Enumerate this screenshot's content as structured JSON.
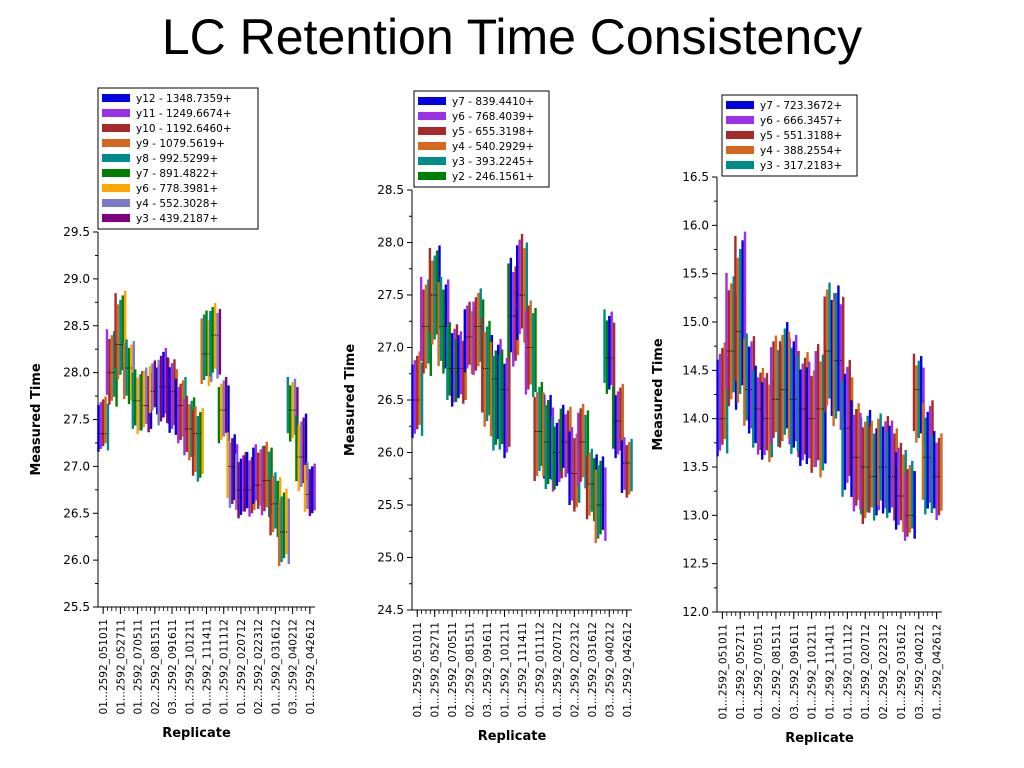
{
  "title": "LC Retention Time Consistency",
  "chart_data": [
    {
      "type": "box",
      "xlabel": "Replicate",
      "ylabel": "Measured Time",
      "ylim": [
        25.5,
        29.5
      ],
      "yticks": [
        25.5,
        26.0,
        26.5,
        27.0,
        27.5,
        28.0,
        28.5,
        29.0,
        29.5
      ],
      "tick_labels": [
        "01...2592_051011",
        "01...2592_052711",
        "01...2592_070511",
        "02...2592_081511",
        "03...2592_091611",
        "01...2592_101211",
        "01...2592_111411",
        "01...2592_011112",
        "01...2592_020712",
        "02...2592_022312",
        "01...2592_031612",
        "03...2592_040212",
        "01...2592_042612"
      ],
      "legend": [
        {
          "label": "y12 - 1348.7359+",
          "color": "#0000e0"
        },
        {
          "label": "y11 - 1249.6674+",
          "color": "#9b30e6"
        },
        {
          "label": "y10 - 1192.6460+",
          "color": "#a52a2a"
        },
        {
          "label": "y9 - 1079.5619+",
          "color": "#d2691e"
        },
        {
          "label": "y8 - 992.5299+",
          "color": "#008b8b"
        },
        {
          "label": "y7 - 891.4822+",
          "color": "#008000"
        },
        {
          "label": "y6 - 778.3981+",
          "color": "#ffa500"
        },
        {
          "label": "y4 - 552.3028+",
          "color": "#7b7bc8"
        },
        {
          "label": "y3 - 439.2187+",
          "color": "#800080"
        }
      ],
      "x": [
        1,
        1.5,
        2,
        2.5,
        3,
        3.5,
        4,
        4.5,
        5,
        5.5,
        6,
        6.5,
        7,
        7.5,
        8,
        8.5,
        9,
        9.5,
        10,
        10.5,
        11,
        11.5,
        12,
        12.5,
        13
      ],
      "values": [
        27.35,
        28.0,
        28.3,
        28.05,
        27.7,
        27.65,
        27.8,
        27.85,
        27.8,
        27.65,
        27.4,
        27.35,
        28.2,
        28.4,
        27.6,
        27.0,
        26.75,
        26.75,
        26.8,
        26.85,
        26.6,
        26.3,
        27.6,
        27.1,
        26.7
      ],
      "ranges": [
        [
          27.2,
          27.7
        ],
        [
          27.7,
          28.4
        ],
        [
          28.0,
          28.8
        ],
        [
          27.7,
          28.3
        ],
        [
          27.4,
          28.0
        ],
        [
          27.4,
          28.0
        ],
        [
          27.6,
          28.1
        ],
        [
          27.5,
          28.2
        ],
        [
          27.4,
          28.1
        ],
        [
          27.3,
          27.9
        ],
        [
          27.1,
          27.7
        ],
        [
          26.9,
          27.6
        ],
        [
          27.9,
          28.6
        ],
        [
          28.0,
          28.7
        ],
        [
          27.3,
          27.9
        ],
        [
          26.6,
          27.3
        ],
        [
          26.5,
          27.1
        ],
        [
          26.5,
          27.1
        ],
        [
          26.6,
          27.2
        ],
        [
          26.5,
          27.2
        ],
        [
          26.3,
          26.9
        ],
        [
          26.0,
          26.7
        ],
        [
          27.3,
          27.9
        ],
        [
          26.8,
          27.5
        ],
        [
          26.5,
          27.0
        ]
      ]
    },
    {
      "type": "box",
      "xlabel": "Replicate",
      "ylabel": "Measured Time",
      "ylim": [
        24.5,
        28.5
      ],
      "yticks": [
        24.5,
        25.0,
        25.5,
        26.0,
        26.5,
        27.0,
        27.5,
        28.0,
        28.5
      ],
      "tick_labels": [
        "01...2592_051011",
        "01...2592_052711",
        "01...2592_070511",
        "02...2592_081511",
        "03...2592_091611",
        "01...2592_101211",
        "01...2592_111411",
        "01...2592_011112",
        "01...2592_020712",
        "02...2592_022312",
        "01...2592_031612",
        "03...2592_040212",
        "01...2592_042612"
      ],
      "legend": [
        {
          "label": "y7 - 839.4410+",
          "color": "#0000e0"
        },
        {
          "label": "y6 - 768.4039+",
          "color": "#9b30e6"
        },
        {
          "label": "y5 - 655.3198+",
          "color": "#a52a2a"
        },
        {
          "label": "y4 - 540.2929+",
          "color": "#d2691e"
        },
        {
          "label": "y3 - 393.2245+",
          "color": "#008b8b"
        },
        {
          "label": "y2 - 246.1561+",
          "color": "#008000"
        }
      ],
      "x": [
        1,
        1.5,
        2,
        2.5,
        3,
        3.5,
        4,
        4.5,
        5,
        5.5,
        6,
        6.5,
        7,
        7.5,
        8,
        8.5,
        9,
        9.5,
        10,
        10.5,
        11,
        11.5,
        12,
        12.5,
        13
      ],
      "values": [
        26.5,
        27.2,
        27.5,
        27.2,
        26.8,
        26.8,
        27.1,
        27.2,
        26.8,
        26.7,
        26.6,
        27.3,
        27.5,
        27.0,
        26.2,
        26.1,
        26.0,
        26.1,
        25.8,
        26.1,
        25.7,
        25.5,
        26.9,
        26.3,
        25.9
      ],
      "ranges": [
        [
          26.2,
          26.9
        ],
        [
          26.8,
          27.6
        ],
        [
          27.1,
          27.9
        ],
        [
          26.8,
          27.6
        ],
        [
          26.5,
          27.2
        ],
        [
          26.5,
          27.1
        ],
        [
          26.8,
          27.4
        ],
        [
          26.8,
          27.5
        ],
        [
          26.3,
          27.2
        ],
        [
          26.1,
          27.0
        ],
        [
          26.0,
          26.9
        ],
        [
          26.9,
          27.8
        ],
        [
          27.1,
          28.0
        ],
        [
          26.6,
          27.4
        ],
        [
          25.8,
          26.6
        ],
        [
          25.7,
          26.5
        ],
        [
          25.7,
          26.3
        ],
        [
          25.8,
          26.4
        ],
        [
          25.5,
          26.2
        ],
        [
          25.7,
          26.4
        ],
        [
          25.4,
          26.0
        ],
        [
          25.2,
          25.9
        ],
        [
          26.6,
          27.3
        ],
        [
          26.0,
          26.6
        ],
        [
          25.6,
          26.1
        ]
      ]
    },
    {
      "type": "box",
      "xlabel": "Replicate",
      "ylabel": "Measured Time",
      "ylim": [
        12.0,
        16.5
      ],
      "yticks": [
        12.0,
        12.5,
        13.0,
        13.5,
        14.0,
        14.5,
        15.0,
        15.5,
        16.0,
        16.5
      ],
      "tick_labels": [
        "01...2592_051011",
        "01...2592_052711",
        "01...2592_070511",
        "02...2592_081511",
        "03...2592_091611",
        "01...2592_101211",
        "01...2592_111411",
        "01...2592_011112",
        "01...2592_020712",
        "02...2592_022312",
        "01...2592_031612",
        "03...2592_040212",
        "01...2592_042612"
      ],
      "legend": [
        {
          "label": "y7 - 723.3672+",
          "color": "#0000e0"
        },
        {
          "label": "y6 - 666.3457+",
          "color": "#9b30e6"
        },
        {
          "label": "y5 - 551.3188+",
          "color": "#a52a2a"
        },
        {
          "label": "y4 - 388.2554+",
          "color": "#d2691e"
        },
        {
          "label": "y3 - 317.2183+",
          "color": "#008b8b"
        }
      ],
      "x": [
        1,
        1.5,
        2,
        2.5,
        3,
        3.5,
        4,
        4.5,
        5,
        5.5,
        6,
        6.5,
        7,
        7.5,
        8,
        8.5,
        9,
        9.5,
        10,
        10.5,
        11,
        11.5,
        12,
        12.5,
        13
      ],
      "values": [
        14.0,
        14.7,
        14.9,
        14.3,
        14.1,
        14.0,
        14.2,
        14.3,
        14.2,
        14.1,
        14.0,
        14.1,
        14.7,
        14.6,
        13.9,
        13.6,
        13.5,
        13.4,
        13.5,
        13.4,
        13.2,
        13.0,
        14.3,
        13.6,
        13.4
      ],
      "ranges": [
        [
          13.7,
          14.7
        ],
        [
          14.2,
          15.4
        ],
        [
          14.3,
          15.8
        ],
        [
          13.9,
          14.8
        ],
        [
          13.7,
          14.5
        ],
        [
          13.6,
          14.4
        ],
        [
          13.8,
          14.8
        ],
        [
          13.8,
          14.9
        ],
        [
          13.7,
          14.8
        ],
        [
          13.6,
          14.6
        ],
        [
          13.5,
          14.5
        ],
        [
          13.5,
          14.7
        ],
        [
          14.1,
          15.3
        ],
        [
          14.0,
          15.3
        ],
        [
          13.3,
          14.5
        ],
        [
          13.1,
          14.1
        ],
        [
          13.0,
          14.0
        ],
        [
          13.0,
          13.9
        ],
        [
          13.1,
          14.0
        ],
        [
          13.0,
          13.9
        ],
        [
          12.9,
          13.7
        ],
        [
          12.8,
          13.5
        ],
        [
          13.8,
          14.6
        ],
        [
          13.1,
          14.1
        ],
        [
          13.0,
          13.8
        ]
      ]
    }
  ]
}
